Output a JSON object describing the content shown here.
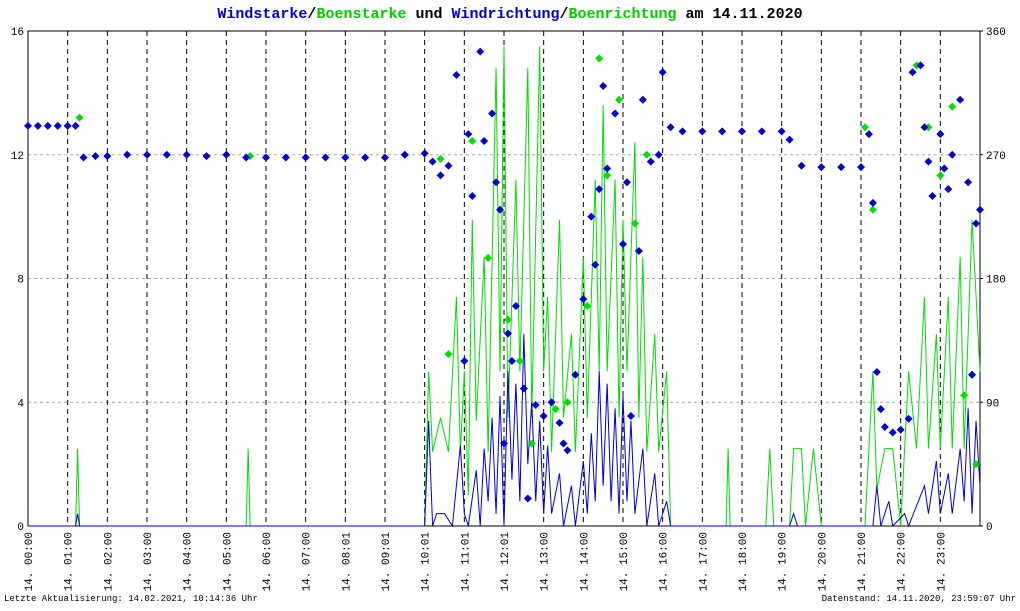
{
  "chart_data": {
    "type": "line",
    "title_parts": [
      {
        "text": "Windstarke",
        "color": "#0000cc"
      },
      {
        "text": "/",
        "color": "#000000"
      },
      {
        "text": "Boenstarke",
        "color": "#00cc00"
      },
      {
        "text": " und ",
        "color": "#000000"
      },
      {
        "text": "Windrichtung",
        "color": "#0000cc"
      },
      {
        "text": "/",
        "color": "#000000"
      },
      {
        "text": "Boenrichtung",
        "color": "#00cc00"
      },
      {
        "text": " am 14.11.2020",
        "color": "#000000"
      }
    ],
    "footer_left": "Letzte Aktualisierung: 14.02.2021, 10:14:36 Uhr",
    "footer_right": "Datenstand: 14.11.2020, 23:59:07 Uhr",
    "xlim": [
      0,
      24
    ],
    "xticks": [
      {
        "value": 0,
        "label": "14. 00:00"
      },
      {
        "value": 1,
        "label": "14. 01:00"
      },
      {
        "value": 2,
        "label": "14. 02:00"
      },
      {
        "value": 3,
        "label": "14. 03:00"
      },
      {
        "value": 4,
        "label": "14. 04:00"
      },
      {
        "value": 5,
        "label": "14. 05:00"
      },
      {
        "value": 6,
        "label": "14. 06:00"
      },
      {
        "value": 7,
        "label": "14. 07:00"
      },
      {
        "value": 8,
        "label": "14. 08:01"
      },
      {
        "value": 9,
        "label": "14. 09:01"
      },
      {
        "value": 10,
        "label": "14. 10:01"
      },
      {
        "value": 11,
        "label": "14. 11:01"
      },
      {
        "value": 12,
        "label": "14. 12:01"
      },
      {
        "value": 13,
        "label": "14. 13:00"
      },
      {
        "value": 14,
        "label": "14. 14:00"
      },
      {
        "value": 15,
        "label": "14. 15:00"
      },
      {
        "value": 16,
        "label": "14. 16:00"
      },
      {
        "value": 17,
        "label": "14. 17:00"
      },
      {
        "value": 18,
        "label": "14. 18:00"
      },
      {
        "value": 19,
        "label": "14. 19:00"
      },
      {
        "value": 20,
        "label": "14. 20:00"
      },
      {
        "value": 21,
        "label": "14. 21:00"
      },
      {
        "value": 22,
        "label": "14. 22:00"
      },
      {
        "value": 23,
        "label": "14. 23:00"
      }
    ],
    "ylim": [
      0,
      16
    ],
    "yticks": [
      0,
      4,
      8,
      12,
      16
    ],
    "y2lim": [
      0,
      360
    ],
    "y2ticks": [
      0,
      90,
      180,
      270,
      360
    ],
    "grid": true,
    "series": [
      {
        "name": "Windstarke",
        "kind": "line",
        "color": "#0000cc",
        "x": [
          0,
          1.2,
          1.25,
          1.3,
          10.0,
          10.1,
          10.2,
          10.3,
          10.5,
          10.7,
          10.9,
          11.0,
          11.1,
          11.3,
          11.4,
          11.5,
          11.6,
          11.7,
          11.8,
          11.9,
          12.0,
          12.1,
          12.2,
          12.3,
          12.4,
          12.5,
          12.6,
          12.7,
          12.8,
          12.9,
          13.0,
          13.1,
          13.2,
          13.4,
          13.5,
          13.7,
          13.8,
          14.0,
          14.1,
          14.2,
          14.3,
          14.4,
          14.5,
          14.6,
          14.7,
          14.8,
          14.9,
          15.0,
          15.1,
          15.2,
          15.3,
          15.5,
          15.6,
          15.8,
          15.9,
          16.1,
          16.2,
          19.2,
          19.3,
          19.4,
          21.3,
          21.4,
          21.5,
          21.7,
          21.8,
          22.1,
          22.2,
          22.6,
          22.7,
          22.9,
          23.0,
          23.2,
          23.3,
          23.5,
          23.6,
          23.7,
          23.8,
          23.9,
          24
        ],
        "values": [
          0,
          0,
          0.4,
          0,
          0,
          3.4,
          0,
          0.4,
          0.4,
          0,
          2.6,
          0.4,
          0,
          1.8,
          0,
          2.5,
          0.8,
          3.5,
          0.4,
          4.2,
          0,
          5.0,
          1.5,
          4.6,
          0.8,
          6.2,
          2.0,
          4.0,
          0.8,
          3.4,
          0.4,
          2.6,
          0.4,
          1.7,
          0,
          1.3,
          0,
          2.1,
          0.4,
          3.0,
          0.8,
          5.0,
          1.3,
          4.6,
          0.8,
          3.8,
          0.4,
          4.2,
          0.8,
          3.4,
          0.4,
          2.5,
          0,
          1.7,
          0,
          0.8,
          0,
          0,
          0.4,
          0,
          0,
          1.3,
          0,
          0.8,
          0,
          0.4,
          0,
          1.3,
          0.4,
          2.1,
          0.4,
          1.7,
          0.4,
          2.5,
          0.8,
          3.8,
          0.4,
          3.4,
          1.3
        ]
      },
      {
        "name": "Boenstarke",
        "kind": "line",
        "color": "#00dd00",
        "x": [
          0,
          1.2,
          1.25,
          1.3,
          5.5,
          5.55,
          5.6,
          10.0,
          10.1,
          10.2,
          10.4,
          10.6,
          10.8,
          10.9,
          11.0,
          11.1,
          11.2,
          11.3,
          11.5,
          11.6,
          11.8,
          11.9,
          12.0,
          12.1,
          12.3,
          12.4,
          12.6,
          12.7,
          12.9,
          13.0,
          13.1,
          13.2,
          13.4,
          13.5,
          13.7,
          13.8,
          14.0,
          14.1,
          14.3,
          14.4,
          14.5,
          14.6,
          14.8,
          14.9,
          15.0,
          15.1,
          15.3,
          15.4,
          15.5,
          15.6,
          15.8,
          15.9,
          16.1,
          16.2,
          17.6,
          17.65,
          17.7,
          18.6,
          18.7,
          18.8,
          19.2,
          19.3,
          19.5,
          19.6,
          19.8,
          20.0,
          21.1,
          21.2,
          21.3,
          21.4,
          21.6,
          21.8,
          22.0,
          22.2,
          22.4,
          22.6,
          22.7,
          22.9,
          23.0,
          23.2,
          23.3,
          23.5,
          23.6,
          23.8,
          24
        ],
        "values": [
          0,
          0,
          2.5,
          0,
          0,
          2.5,
          0,
          0,
          5.0,
          2.4,
          3.5,
          2.4,
          7.4,
          2.4,
          5.0,
          1.0,
          9.9,
          3.4,
          8.7,
          2.4,
          14.8,
          5.0,
          15.5,
          3.5,
          11.2,
          5.0,
          14.8,
          3.5,
          15.5,
          5.0,
          7.4,
          2.4,
          9.9,
          3.5,
          6.2,
          2.4,
          8.7,
          3.5,
          11.2,
          5.0,
          13.6,
          5.0,
          11.2,
          3.5,
          9.9,
          5.0,
          12.4,
          3.5,
          8.7,
          2.4,
          6.2,
          2.4,
          5.0,
          0,
          0,
          2.5,
          0,
          0,
          2.5,
          0,
          0,
          2.5,
          2.5,
          0,
          2.5,
          0,
          0,
          2.5,
          5.0,
          1.2,
          2.5,
          2.5,
          0,
          5.0,
          2.5,
          7.4,
          2.5,
          6.2,
          2.5,
          7.4,
          2.5,
          8.7,
          2.5,
          9.9,
          5.0
        ]
      },
      {
        "name": "Windrichtung",
        "kind": "points",
        "axis": "y2",
        "color": "#0000cc",
        "x": [
          0,
          0.25,
          0.5,
          0.75,
          1.0,
          1.2,
          1.4,
          1.7,
          2.0,
          2.5,
          3.0,
          3.5,
          4.0,
          4.5,
          5.0,
          5.5,
          6.0,
          6.5,
          7.0,
          7.5,
          8.0,
          8.5,
          9.0,
          9.5,
          10.0,
          10.2,
          10.4,
          10.6,
          10.8,
          11.0,
          11.1,
          11.2,
          11.4,
          11.5,
          11.7,
          11.8,
          11.9,
          12.0,
          12.1,
          12.2,
          12.3,
          12.5,
          12.6,
          12.8,
          13.0,
          13.2,
          13.4,
          13.5,
          13.6,
          13.8,
          14.0,
          14.2,
          14.3,
          14.4,
          14.5,
          14.6,
          14.8,
          15.0,
          15.1,
          15.2,
          15.4,
          15.5,
          15.7,
          15.9,
          16.0,
          16.2,
          16.5,
          17.0,
          17.5,
          18.0,
          18.5,
          19.0,
          19.2,
          19.5,
          20.0,
          20.5,
          21.0,
          21.2,
          21.3,
          21.4,
          21.5,
          21.6,
          21.8,
          22.0,
          22.2,
          22.3,
          22.5,
          22.6,
          22.7,
          22.8,
          23.0,
          23.1,
          23.2,
          23.3,
          23.5,
          23.7,
          23.8,
          23.9,
          24.0
        ],
        "values": [
          291,
          291,
          291,
          291,
          291,
          291,
          268,
          269,
          269,
          270,
          270,
          270,
          270,
          269,
          270,
          268,
          268,
          268,
          268,
          268,
          268,
          268,
          268,
          270,
          271,
          265,
          255,
          262,
          328,
          120,
          285,
          240,
          345,
          280,
          300,
          250,
          230,
          60,
          140,
          120,
          160,
          100,
          20,
          88,
          80,
          90,
          75,
          60,
          55,
          110,
          165,
          225,
          190,
          245,
          320,
          260,
          300,
          205,
          250,
          80,
          200,
          310,
          265,
          270,
          330,
          290,
          287,
          287,
          287,
          287,
          287,
          287,
          281,
          262,
          261,
          261,
          261,
          285,
          235,
          112,
          85,
          72,
          68,
          70,
          78,
          330,
          335,
          290,
          265,
          240,
          285,
          260,
          245,
          270,
          310,
          250,
          110,
          220,
          230
        ]
      },
      {
        "name": "Boenrichtung",
        "kind": "points",
        "axis": "y2",
        "color": "#00dd00",
        "x": [
          1.3,
          5.6,
          10.4,
          10.6,
          11.2,
          11.6,
          12.1,
          12.4,
          12.7,
          13.3,
          13.6,
          14.1,
          14.4,
          14.6,
          14.9,
          15.3,
          15.6,
          21.1,
          21.3,
          22.4,
          22.7,
          23.0,
          23.3,
          23.6,
          23.9
        ],
        "values": [
          297,
          269,
          267,
          125,
          280,
          195,
          150,
          120,
          60,
          85,
          90,
          160,
          340,
          255,
          310,
          220,
          270,
          290,
          230,
          335,
          290,
          255,
          305,
          95,
          45
        ]
      }
    ]
  }
}
